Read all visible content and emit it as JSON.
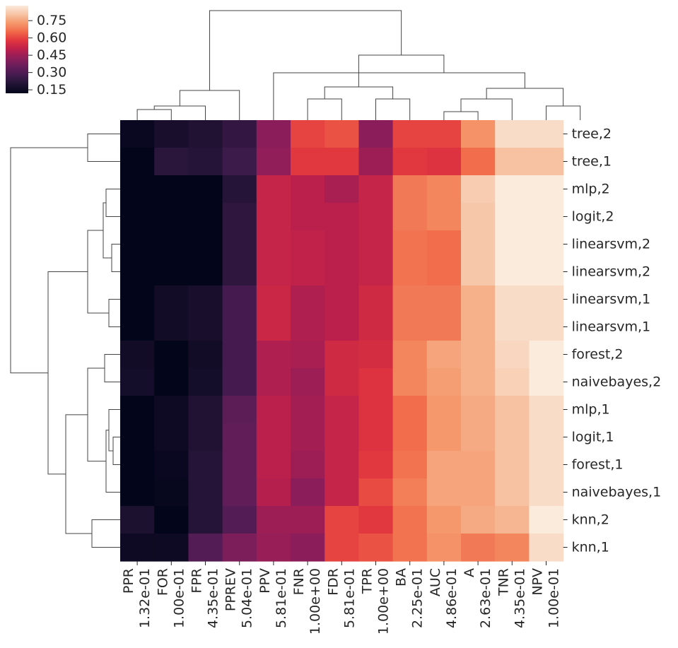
{
  "chart_data": {
    "type": "heatmap",
    "title": "",
    "column_labels": [
      [
        "PPR",
        "1.32e-01"
      ],
      [
        "FOR",
        "1.00e-01"
      ],
      [
        "FPR",
        "4.35e-01"
      ],
      [
        "PPREV",
        "5.04e-01"
      ],
      [
        "PPV",
        "5.81e-01"
      ],
      [
        "FNR",
        "1.00e+00"
      ],
      [
        "FDR",
        "5.81e-01"
      ],
      [
        "TPR",
        "1.00e+00"
      ],
      [
        "BA",
        "2.25e-01"
      ],
      [
        "AUC",
        "4.86e-01"
      ],
      [
        "A",
        "2.63e-01"
      ],
      [
        "TNR",
        "4.35e-01"
      ],
      [
        "NPV",
        "1.00e-01"
      ]
    ],
    "row_labels": [
      "tree,2",
      "tree,1",
      "mlp,2",
      "logit,2",
      "linearsvm,2",
      "linearsvm,2",
      "linearsvm,1",
      "linearsvm,1",
      "forest,2",
      "naivebayes,2",
      "mlp,1",
      "logit,1",
      "forest,1",
      "naivebayes,1",
      "knn,2",
      "knn,1"
    ],
    "values": [
      [
        0.14,
        0.18,
        0.2,
        0.24,
        0.42,
        0.6,
        0.62,
        0.42,
        0.6,
        0.6,
        0.72,
        0.85,
        0.85
      ],
      [
        0.09,
        0.22,
        0.21,
        0.26,
        0.43,
        0.58,
        0.58,
        0.45,
        0.58,
        0.57,
        0.66,
        0.8,
        0.8
      ],
      [
        0.11,
        0.12,
        0.11,
        0.21,
        0.52,
        0.5,
        0.47,
        0.52,
        0.68,
        0.7,
        0.82,
        0.9,
        0.89
      ],
      [
        0.12,
        0.12,
        0.12,
        0.23,
        0.52,
        0.5,
        0.5,
        0.52,
        0.68,
        0.7,
        0.81,
        0.88,
        0.88
      ],
      [
        0.12,
        0.12,
        0.12,
        0.23,
        0.52,
        0.51,
        0.5,
        0.52,
        0.67,
        0.66,
        0.81,
        0.89,
        0.88
      ],
      [
        0.12,
        0.12,
        0.12,
        0.23,
        0.52,
        0.51,
        0.5,
        0.52,
        0.67,
        0.66,
        0.81,
        0.89,
        0.88
      ],
      [
        0.1,
        0.16,
        0.18,
        0.28,
        0.53,
        0.48,
        0.5,
        0.54,
        0.68,
        0.68,
        0.77,
        0.85,
        0.85
      ],
      [
        0.1,
        0.16,
        0.18,
        0.28,
        0.53,
        0.48,
        0.5,
        0.54,
        0.68,
        0.68,
        0.77,
        0.85,
        0.85
      ],
      [
        0.16,
        0.11,
        0.16,
        0.28,
        0.48,
        0.47,
        0.54,
        0.55,
        0.7,
        0.75,
        0.77,
        0.84,
        0.89
      ],
      [
        0.17,
        0.1,
        0.17,
        0.28,
        0.48,
        0.45,
        0.54,
        0.57,
        0.7,
        0.74,
        0.77,
        0.83,
        0.89
      ],
      [
        0.11,
        0.15,
        0.2,
        0.33,
        0.5,
        0.46,
        0.52,
        0.57,
        0.66,
        0.73,
        0.76,
        0.8,
        0.85
      ],
      [
        0.12,
        0.15,
        0.2,
        0.34,
        0.5,
        0.46,
        0.52,
        0.57,
        0.66,
        0.73,
        0.76,
        0.8,
        0.85
      ],
      [
        0.12,
        0.14,
        0.21,
        0.34,
        0.5,
        0.45,
        0.52,
        0.58,
        0.67,
        0.75,
        0.75,
        0.8,
        0.85
      ],
      [
        0.12,
        0.13,
        0.21,
        0.34,
        0.49,
        0.42,
        0.52,
        0.61,
        0.69,
        0.75,
        0.75,
        0.8,
        0.85
      ],
      [
        0.19,
        0.11,
        0.21,
        0.31,
        0.45,
        0.45,
        0.6,
        0.58,
        0.67,
        0.73,
        0.76,
        0.78,
        0.88
      ],
      [
        0.15,
        0.15,
        0.31,
        0.39,
        0.44,
        0.42,
        0.6,
        0.62,
        0.67,
        0.72,
        0.68,
        0.7,
        0.85
      ]
    ],
    "colormap": "rocket",
    "colorbar": {
      "range": [
        0.12,
        0.88
      ],
      "ticks": [
        "0.15",
        "0.30",
        "0.45",
        "0.60",
        "0.75"
      ],
      "tick_values": [
        0.15,
        0.3,
        0.45,
        0.6,
        0.75
      ],
      "placement": "top-left"
    },
    "column_dendrogram": true,
    "row_dendrogram": true,
    "legend": false,
    "grid": false
  }
}
